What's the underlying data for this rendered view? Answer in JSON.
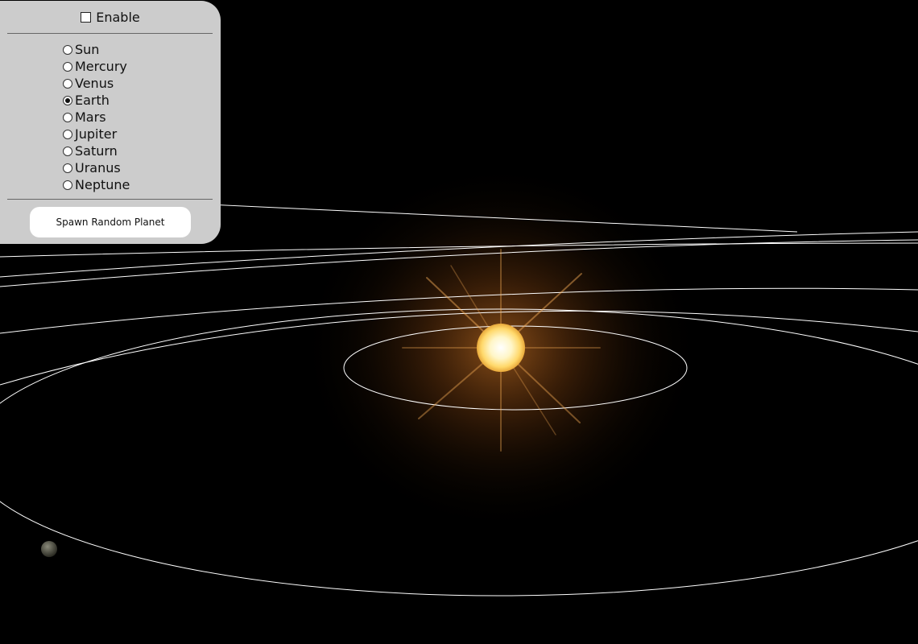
{
  "controls": {
    "enable_label": "Enable",
    "enable_checked": false,
    "bodies": [
      {
        "label": "Sun",
        "selected": false
      },
      {
        "label": "Mercury",
        "selected": false
      },
      {
        "label": "Venus",
        "selected": false
      },
      {
        "label": "Earth",
        "selected": true
      },
      {
        "label": "Mars",
        "selected": false
      },
      {
        "label": "Jupiter",
        "selected": false
      },
      {
        "label": "Saturn",
        "selected": false
      },
      {
        "label": "Uranus",
        "selected": false
      },
      {
        "label": "Neptune",
        "selected": false
      }
    ],
    "spawn_button_label": "Spawn Random Planet"
  },
  "scene": {
    "background_color": "#000000",
    "orbit_color": "#ffffff",
    "sun_color": "#ffe9a8",
    "glow_color": "#c87a2c"
  }
}
